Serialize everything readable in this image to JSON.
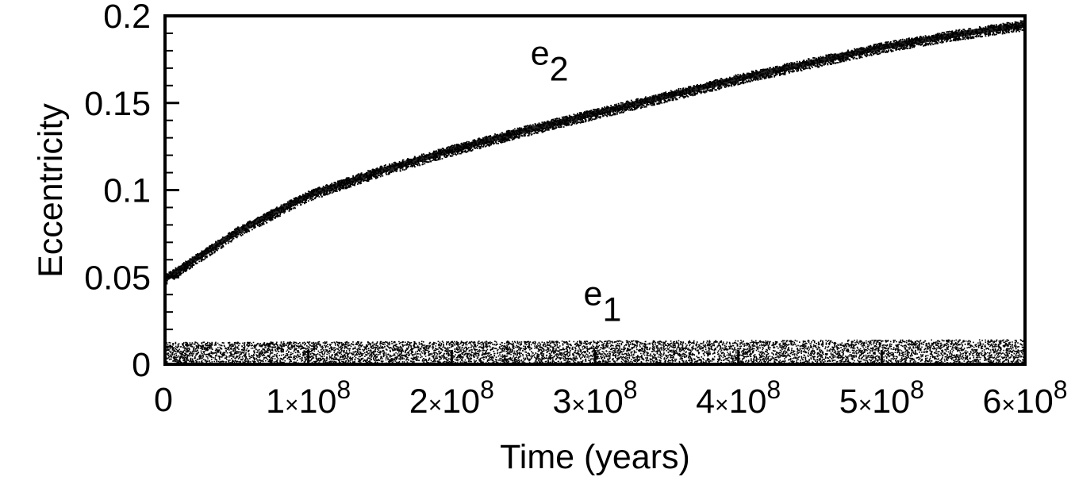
{
  "chart_data": {
    "type": "scatter",
    "title": "",
    "xlabel": "Time (years)",
    "ylabel": "Eccentricity",
    "xlim": [
      0,
      600000000
    ],
    "ylim": [
      0,
      0.2
    ],
    "grid": false,
    "legend": "none (inline labels)",
    "x_ticks": [
      {
        "value": 0,
        "mant": "0",
        "exp": ""
      },
      {
        "value": 100000000,
        "mant": "1x10",
        "exp": "8"
      },
      {
        "value": 200000000,
        "mant": "2x10",
        "exp": "8"
      },
      {
        "value": 300000000,
        "mant": "3x10",
        "exp": "8"
      },
      {
        "value": 400000000,
        "mant": "4x10",
        "exp": "8"
      },
      {
        "value": 500000000,
        "mant": "5x10",
        "exp": "8"
      },
      {
        "value": 600000000,
        "mant": "6x10",
        "exp": "8"
      }
    ],
    "y_ticks": [
      {
        "value": 0,
        "label": "0"
      },
      {
        "value": 0.05,
        "label": "0.05"
      },
      {
        "value": 0.1,
        "label": "0.1"
      },
      {
        "value": 0.15,
        "label": "0.15"
      },
      {
        "value": 0.2,
        "label": "0.2"
      }
    ],
    "y_minor_step": 0.01,
    "x": [
      0,
      50000000,
      100000000,
      150000000,
      200000000,
      250000000,
      300000000,
      350000000,
      400000000,
      450000000,
      500000000,
      550000000,
      600000000
    ],
    "series": [
      {
        "name": "e2",
        "label_main": "e",
        "label_sub": "2",
        "label_pos": {
          "x": 255000000,
          "y": 0.172
        },
        "values": [
          0.049,
          0.076,
          0.097,
          0.111,
          0.123,
          0.134,
          0.144,
          0.154,
          0.164,
          0.173,
          0.182,
          0.189,
          0.195
        ],
        "spread": 0.003,
        "color": "#000000"
      },
      {
        "name": "e1",
        "label_main": "e",
        "label_sub": "1",
        "label_pos": {
          "x": 292000000,
          "y": 0.034
        },
        "values": [
          0.006,
          0.006,
          0.006,
          0.006,
          0.006,
          0.006,
          0.0065,
          0.0065,
          0.007,
          0.007,
          0.007,
          0.007,
          0.007
        ],
        "band_min": 0.0,
        "band_max": 0.013,
        "color": "#000000"
      }
    ]
  }
}
